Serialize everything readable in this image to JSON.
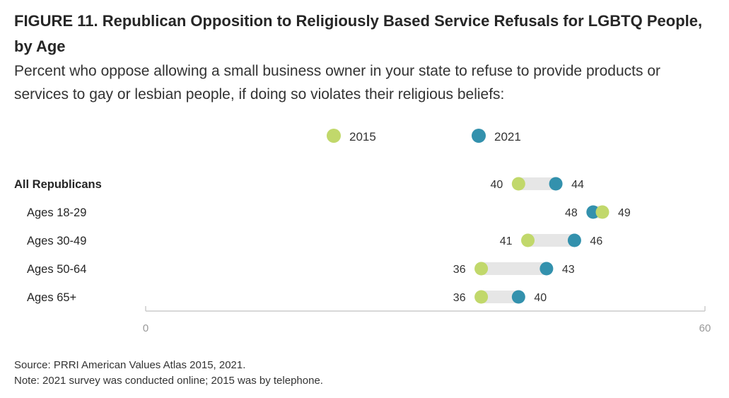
{
  "title": "FIGURE 11.  Republican Opposition to Religiously Based Service Refusals for LGBTQ People, by Age",
  "subtitle": "Percent who oppose allowing a small business owner in your state to refuse to provide products or services to gay or lesbian people, if doing so violates their religious beliefs:",
  "source": "Source: PRRI American Values Atlas 2015, 2021.",
  "note": "Note: 2021 survey was conducted online; 2015 was by telephone.",
  "colors": {
    "series_2015": "#c1d86b",
    "series_2021": "#3391ad",
    "connector": "#e6e6e6",
    "axis": "#cccccc"
  },
  "chart_data": {
    "type": "dumbbell",
    "xlim": [
      0,
      60
    ],
    "x_ticks": [
      "0",
      "60"
    ],
    "legend_position": "top-center",
    "grid": false,
    "categories": [
      "All Republicans",
      "Ages 18-29",
      "Ages 30-49",
      "Ages 50-64",
      "Ages 65+"
    ],
    "category_emphasis": [
      true,
      false,
      false,
      false,
      false
    ],
    "series": [
      {
        "name": "2015",
        "values": [
          40,
          49,
          41,
          36,
          36
        ],
        "labels": [
          "40",
          "49",
          "41",
          "36",
          "36"
        ]
      },
      {
        "name": "2021",
        "values": [
          44,
          48,
          46,
          43,
          40
        ],
        "labels": [
          "44",
          "48",
          "46",
          "43",
          "40"
        ]
      }
    ]
  }
}
